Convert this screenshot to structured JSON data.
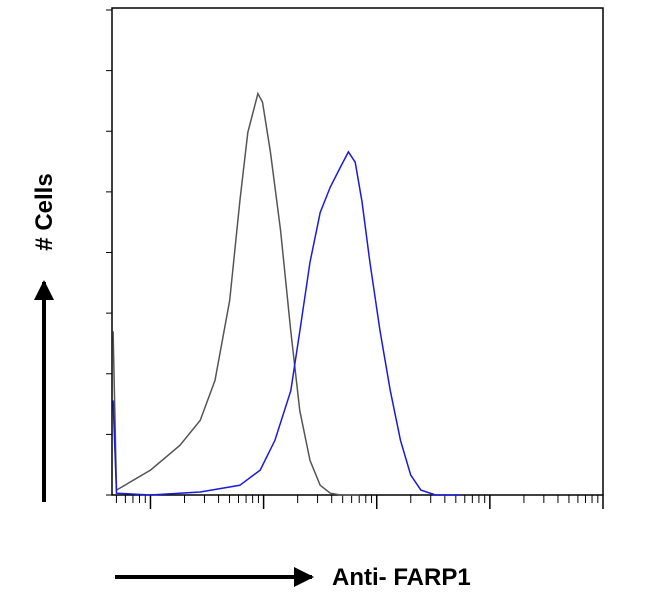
{
  "chart_data": {
    "type": "line",
    "x_label": "Anti- FARP1",
    "y_label": "# Cells",
    "xlim": [
      -0.34,
      4.0
    ],
    "xticks": [
      0,
      1,
      2,
      3,
      4
    ],
    "ylim": [
      0,
      8
    ],
    "yticks": [
      0,
      1,
      2,
      3,
      4,
      5,
      6,
      7,
      8
    ],
    "series": [
      {
        "color": "#555555",
        "x": [
          -0.33,
          -0.3,
          0.0,
          0.26,
          0.44,
          0.57,
          0.7,
          0.79,
          0.86,
          0.93,
          0.95,
          0.99,
          1.06,
          1.15,
          1.24,
          1.32,
          1.41,
          1.5,
          1.59,
          1.68,
          1.85
        ],
        "values": [
          2.7,
          0.08,
          0.41,
          0.82,
          1.23,
          1.89,
          3.21,
          4.84,
          5.98,
          6.48,
          6.62,
          6.48,
          5.66,
          4.36,
          2.7,
          1.39,
          0.57,
          0.16,
          0.03,
          0,
          0
        ]
      },
      {
        "color": "#1a1adc",
        "x": [
          -0.33,
          -0.3,
          0.0,
          0.44,
          0.79,
          0.97,
          1.1,
          1.24,
          1.32,
          1.41,
          1.5,
          1.59,
          1.68,
          1.75,
          1.81,
          1.87,
          1.94,
          2.03,
          2.12,
          2.21,
          2.3,
          2.39,
          2.52,
          2.74
        ],
        "values": [
          1.56,
          0.03,
          0,
          0.05,
          0.16,
          0.41,
          0.9,
          1.72,
          2.7,
          3.84,
          4.66,
          5.08,
          5.41,
          5.66,
          5.49,
          4.84,
          3.84,
          2.7,
          1.72,
          0.9,
          0.33,
          0.08,
          0,
          0
        ]
      }
    ]
  }
}
